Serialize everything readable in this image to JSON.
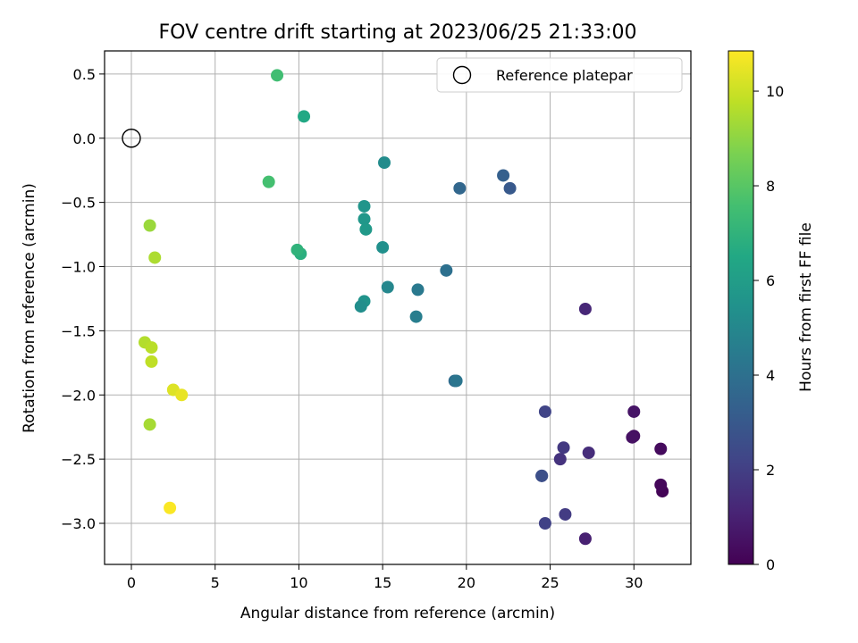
{
  "chart_data": {
    "type": "scatter",
    "title": "FOV centre drift starting at 2023/06/25 21:33:00",
    "xlabel": "Angular distance from reference (arcmin)",
    "ylabel": "Rotation from reference (arcmin)",
    "xlim": [
      -1.6,
      33.4
    ],
    "ylim": [
      -3.32,
      0.68
    ],
    "xticks": [
      0,
      5,
      10,
      15,
      20,
      25,
      30
    ],
    "xtick_labels": [
      "0",
      "5",
      "10",
      "15",
      "20",
      "25",
      "30"
    ],
    "yticks": [
      0.5,
      0.0,
      -0.5,
      -1.0,
      -1.5,
      -2.0,
      -2.5,
      -3.0
    ],
    "ytick_labels": [
      "0.5",
      "0.0",
      "−0.5",
      "−1.0",
      "−1.5",
      "−2.0",
      "−2.5",
      "−3.0"
    ],
    "grid": true,
    "legend": {
      "placement": "top-right",
      "entries": [
        "Reference platepar"
      ]
    },
    "reference_point": {
      "x": 0,
      "y": 0
    },
    "colorbar": {
      "label": "Hours from first FF file",
      "colormap": "viridis",
      "range": [
        0,
        10.85
      ],
      "ticks": [
        0,
        2,
        4,
        6,
        8,
        10
      ],
      "tick_labels": [
        "0",
        "2",
        "4",
        "6",
        "8",
        "10"
      ]
    },
    "points": [
      {
        "x": 31.7,
        "y": -2.75,
        "c": 0.1
      },
      {
        "x": 31.6,
        "y": -2.7,
        "c": 0.2
      },
      {
        "x": 31.6,
        "y": -2.42,
        "c": 0.3
      },
      {
        "x": 30.0,
        "y": -2.32,
        "c": 0.4
      },
      {
        "x": 29.9,
        "y": -2.33,
        "c": 0.5
      },
      {
        "x": 30.0,
        "y": -2.13,
        "c": 0.6
      },
      {
        "x": 27.1,
        "y": -3.12,
        "c": 1.0
      },
      {
        "x": 27.1,
        "y": -1.33,
        "c": 1.2
      },
      {
        "x": 27.3,
        "y": -2.45,
        "c": 1.4
      },
      {
        "x": 25.6,
        "y": -2.5,
        "c": 1.6
      },
      {
        "x": 25.8,
        "y": -2.41,
        "c": 1.8
      },
      {
        "x": 25.9,
        "y": -2.93,
        "c": 1.9
      },
      {
        "x": 24.7,
        "y": -3.0,
        "c": 2.1
      },
      {
        "x": 24.7,
        "y": -2.13,
        "c": 2.2
      },
      {
        "x": 24.5,
        "y": -2.63,
        "c": 2.4
      },
      {
        "x": 24.5,
        "y": -2.63,
        "c": 2.6
      },
      {
        "x": 22.6,
        "y": -0.39,
        "c": 3.0
      },
      {
        "x": 22.2,
        "y": -0.29,
        "c": 3.3
      },
      {
        "x": 19.6,
        "y": -0.39,
        "c": 3.6
      },
      {
        "x": 19.3,
        "y": -1.89,
        "c": 3.8
      },
      {
        "x": 18.8,
        "y": -1.03,
        "c": 4.0
      },
      {
        "x": 19.4,
        "y": -1.89,
        "c": 4.2
      },
      {
        "x": 17.1,
        "y": -1.18,
        "c": 4.4
      },
      {
        "x": 17.0,
        "y": -1.39,
        "c": 4.6
      },
      {
        "x": 15.1,
        "y": -0.19,
        "c": 5.2
      },
      {
        "x": 15.0,
        "y": -0.85,
        "c": 5.4
      },
      {
        "x": 15.3,
        "y": -1.16,
        "c": 5.0
      },
      {
        "x": 13.9,
        "y": -0.53,
        "c": 5.6
      },
      {
        "x": 13.9,
        "y": -0.63,
        "c": 5.7
      },
      {
        "x": 14.0,
        "y": -0.71,
        "c": 5.8
      },
      {
        "x": 13.9,
        "y": -1.27,
        "c": 5.5
      },
      {
        "x": 13.7,
        "y": -1.31,
        "c": 5.3
      },
      {
        "x": 10.3,
        "y": 0.17,
        "c": 6.5
      },
      {
        "x": 10.1,
        "y": -0.9,
        "c": 6.8
      },
      {
        "x": 9.9,
        "y": -0.87,
        "c": 7.0
      },
      {
        "x": 8.7,
        "y": 0.49,
        "c": 7.5
      },
      {
        "x": 8.2,
        "y": -0.34,
        "c": 7.6
      },
      {
        "x": 1.1,
        "y": -0.68,
        "c": 9.2
      },
      {
        "x": 1.4,
        "y": -0.93,
        "c": 9.5
      },
      {
        "x": 0.8,
        "y": -1.59,
        "c": 9.6
      },
      {
        "x": 1.2,
        "y": -1.63,
        "c": 9.7
      },
      {
        "x": 1.2,
        "y": -1.74,
        "c": 9.8
      },
      {
        "x": 1.1,
        "y": -2.23,
        "c": 9.4
      },
      {
        "x": 2.5,
        "y": -1.96,
        "c": 10.3
      },
      {
        "x": 3.0,
        "y": -2.0,
        "c": 10.5
      },
      {
        "x": 2.3,
        "y": -2.88,
        "c": 10.8
      }
    ]
  }
}
